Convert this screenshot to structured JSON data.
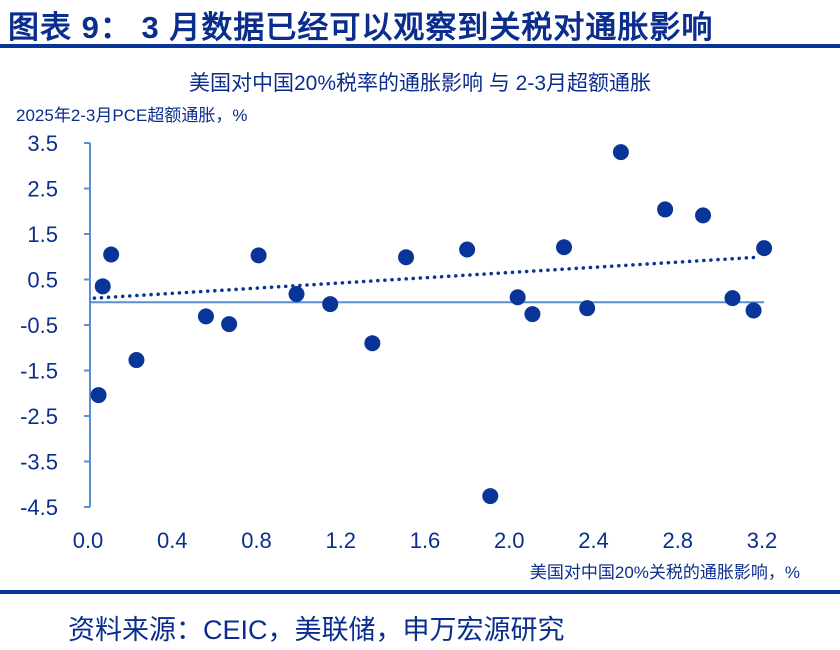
{
  "header": {
    "title": "图表 9：  3 月数据已经可以观察到关税对通胀影响"
  },
  "footer": {
    "source": "资料来源：CEIC，美联储，申万宏源研究"
  },
  "colors": {
    "text": "#0b2e8e",
    "axis": "#5b8ed0",
    "points": "#0a3598"
  },
  "chart_data": {
    "type": "scatter",
    "title": "美国对中国20%税率的通胀影响 与 2-3月超额通胀",
    "xlabel": "美国对中国20%关税的通胀影响，%",
    "ylabel": "2025年2-3月PCE超额通胀，%",
    "xlim": [
      0.0,
      3.2
    ],
    "ylim": [
      -4.5,
      3.5
    ],
    "xticks": [
      "0.0",
      "0.4",
      "0.8",
      "1.2",
      "1.6",
      "2.0",
      "2.4",
      "2.8",
      "3.2"
    ],
    "yticks": [
      "3.5",
      "2.5",
      "1.5",
      "0.5",
      "-0.5",
      "-1.5",
      "-2.5",
      "-3.5",
      "-4.5"
    ],
    "grid": false,
    "trendline": {
      "style": "dotted",
      "x": [
        0.03,
        3.18
      ],
      "y": [
        0.09,
        0.99
      ]
    },
    "points": [
      {
        "x": 0.05,
        "y": -2.04
      },
      {
        "x": 0.07,
        "y": 0.35
      },
      {
        "x": 0.11,
        "y": 1.05
      },
      {
        "x": 0.23,
        "y": -1.27
      },
      {
        "x": 0.56,
        "y": -0.31
      },
      {
        "x": 0.67,
        "y": -0.48
      },
      {
        "x": 0.81,
        "y": 1.03
      },
      {
        "x": 0.99,
        "y": 0.18
      },
      {
        "x": 1.15,
        "y": -0.04
      },
      {
        "x": 1.35,
        "y": -0.9
      },
      {
        "x": 1.51,
        "y": 0.99
      },
      {
        "x": 1.8,
        "y": 1.16
      },
      {
        "x": 1.91,
        "y": -4.26
      },
      {
        "x": 2.04,
        "y": 0.11
      },
      {
        "x": 2.11,
        "y": -0.26
      },
      {
        "x": 2.26,
        "y": 1.21
      },
      {
        "x": 2.37,
        "y": -0.13
      },
      {
        "x": 2.53,
        "y": 3.3
      },
      {
        "x": 2.74,
        "y": 2.04
      },
      {
        "x": 2.92,
        "y": 1.91
      },
      {
        "x": 3.06,
        "y": 0.09
      },
      {
        "x": 3.16,
        "y": -0.18
      },
      {
        "x": 3.21,
        "y": 1.19
      }
    ]
  }
}
